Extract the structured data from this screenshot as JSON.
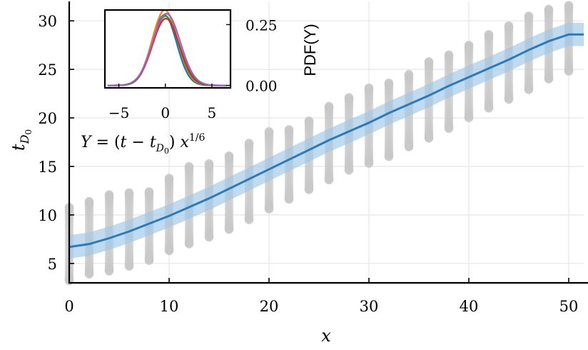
{
  "chart_data": [
    {
      "type": "scatter+line",
      "xlabel": "x",
      "ylabel": "t_D0",
      "xlim": [
        0,
        51.5
      ],
      "ylim": [
        3,
        32
      ],
      "x_ticks": [
        "0",
        "10",
        "20",
        "30",
        "40",
        "50"
      ],
      "y_ticks": [
        "5",
        "10",
        "15",
        "20",
        "25",
        "30"
      ],
      "grid": true,
      "line": {
        "color": "#2b7bba",
        "band_color": "#9ec6e6",
        "x": [
          0,
          2,
          4,
          6,
          8,
          10,
          12,
          14,
          16,
          18,
          20,
          22,
          24,
          26,
          28,
          30,
          32,
          34,
          36,
          38,
          40,
          42,
          44,
          46,
          48,
          50,
          51.5
        ],
        "y": [
          6.7,
          7.0,
          7.6,
          8.3,
          9.1,
          9.9,
          10.8,
          11.7,
          12.7,
          13.7,
          14.7,
          15.7,
          16.7,
          17.7,
          18.6,
          19.5,
          20.5,
          21.4,
          22.3,
          23.3,
          24.2,
          25.1,
          26.0,
          27.0,
          27.9,
          28.6,
          28.6
        ],
        "band_halfwidth": 1.2
      },
      "scatter": {
        "color": "#c8c8c8",
        "x": [
          0,
          2,
          4,
          6,
          8,
          10,
          12,
          14,
          16,
          18,
          20,
          22,
          24,
          26,
          28,
          30,
          32,
          34,
          36,
          38,
          40,
          42,
          44,
          46,
          48,
          50
        ],
        "ymin": [
          3.2,
          3.9,
          4.2,
          4.7,
          5.3,
          6.3,
          7.0,
          7.7,
          8.5,
          9.5,
          10.6,
          11.6,
          12.6,
          13.6,
          14.6,
          15.3,
          16.0,
          17.0,
          17.9,
          18.9,
          20.0,
          21.0,
          21.9,
          22.9,
          24.0,
          24.8
        ],
        "ymax": [
          10.8,
          11.4,
          12.1,
          12.3,
          12.4,
          13.8,
          15.0,
          15.3,
          16.1,
          17.4,
          18.6,
          18.8,
          19.7,
          21.2,
          22.1,
          23.1,
          23.6,
          24.5,
          25.8,
          26.5,
          27.5,
          28.6,
          29.5,
          30.5,
          31.2,
          31.6
        ]
      }
    },
    {
      "type": "line",
      "xlim": [
        -6.5,
        7
      ],
      "ylim": [
        -0.01,
        0.31
      ],
      "x_ticks": [
        "-5",
        "0",
        "5"
      ],
      "y_ticks": [
        "0.25",
        "0.00"
      ],
      "ylabel": "PDF(Y)",
      "annotation": "Y = (t − t_D0) x^1/6",
      "series_colors": [
        "#1f77b4",
        "#ff7f0e",
        "#2ca02c",
        "#d62728",
        "#9467bd"
      ],
      "peaks": [
        0.29,
        0.31,
        0.285,
        0.275,
        0.295
      ]
    }
  ]
}
